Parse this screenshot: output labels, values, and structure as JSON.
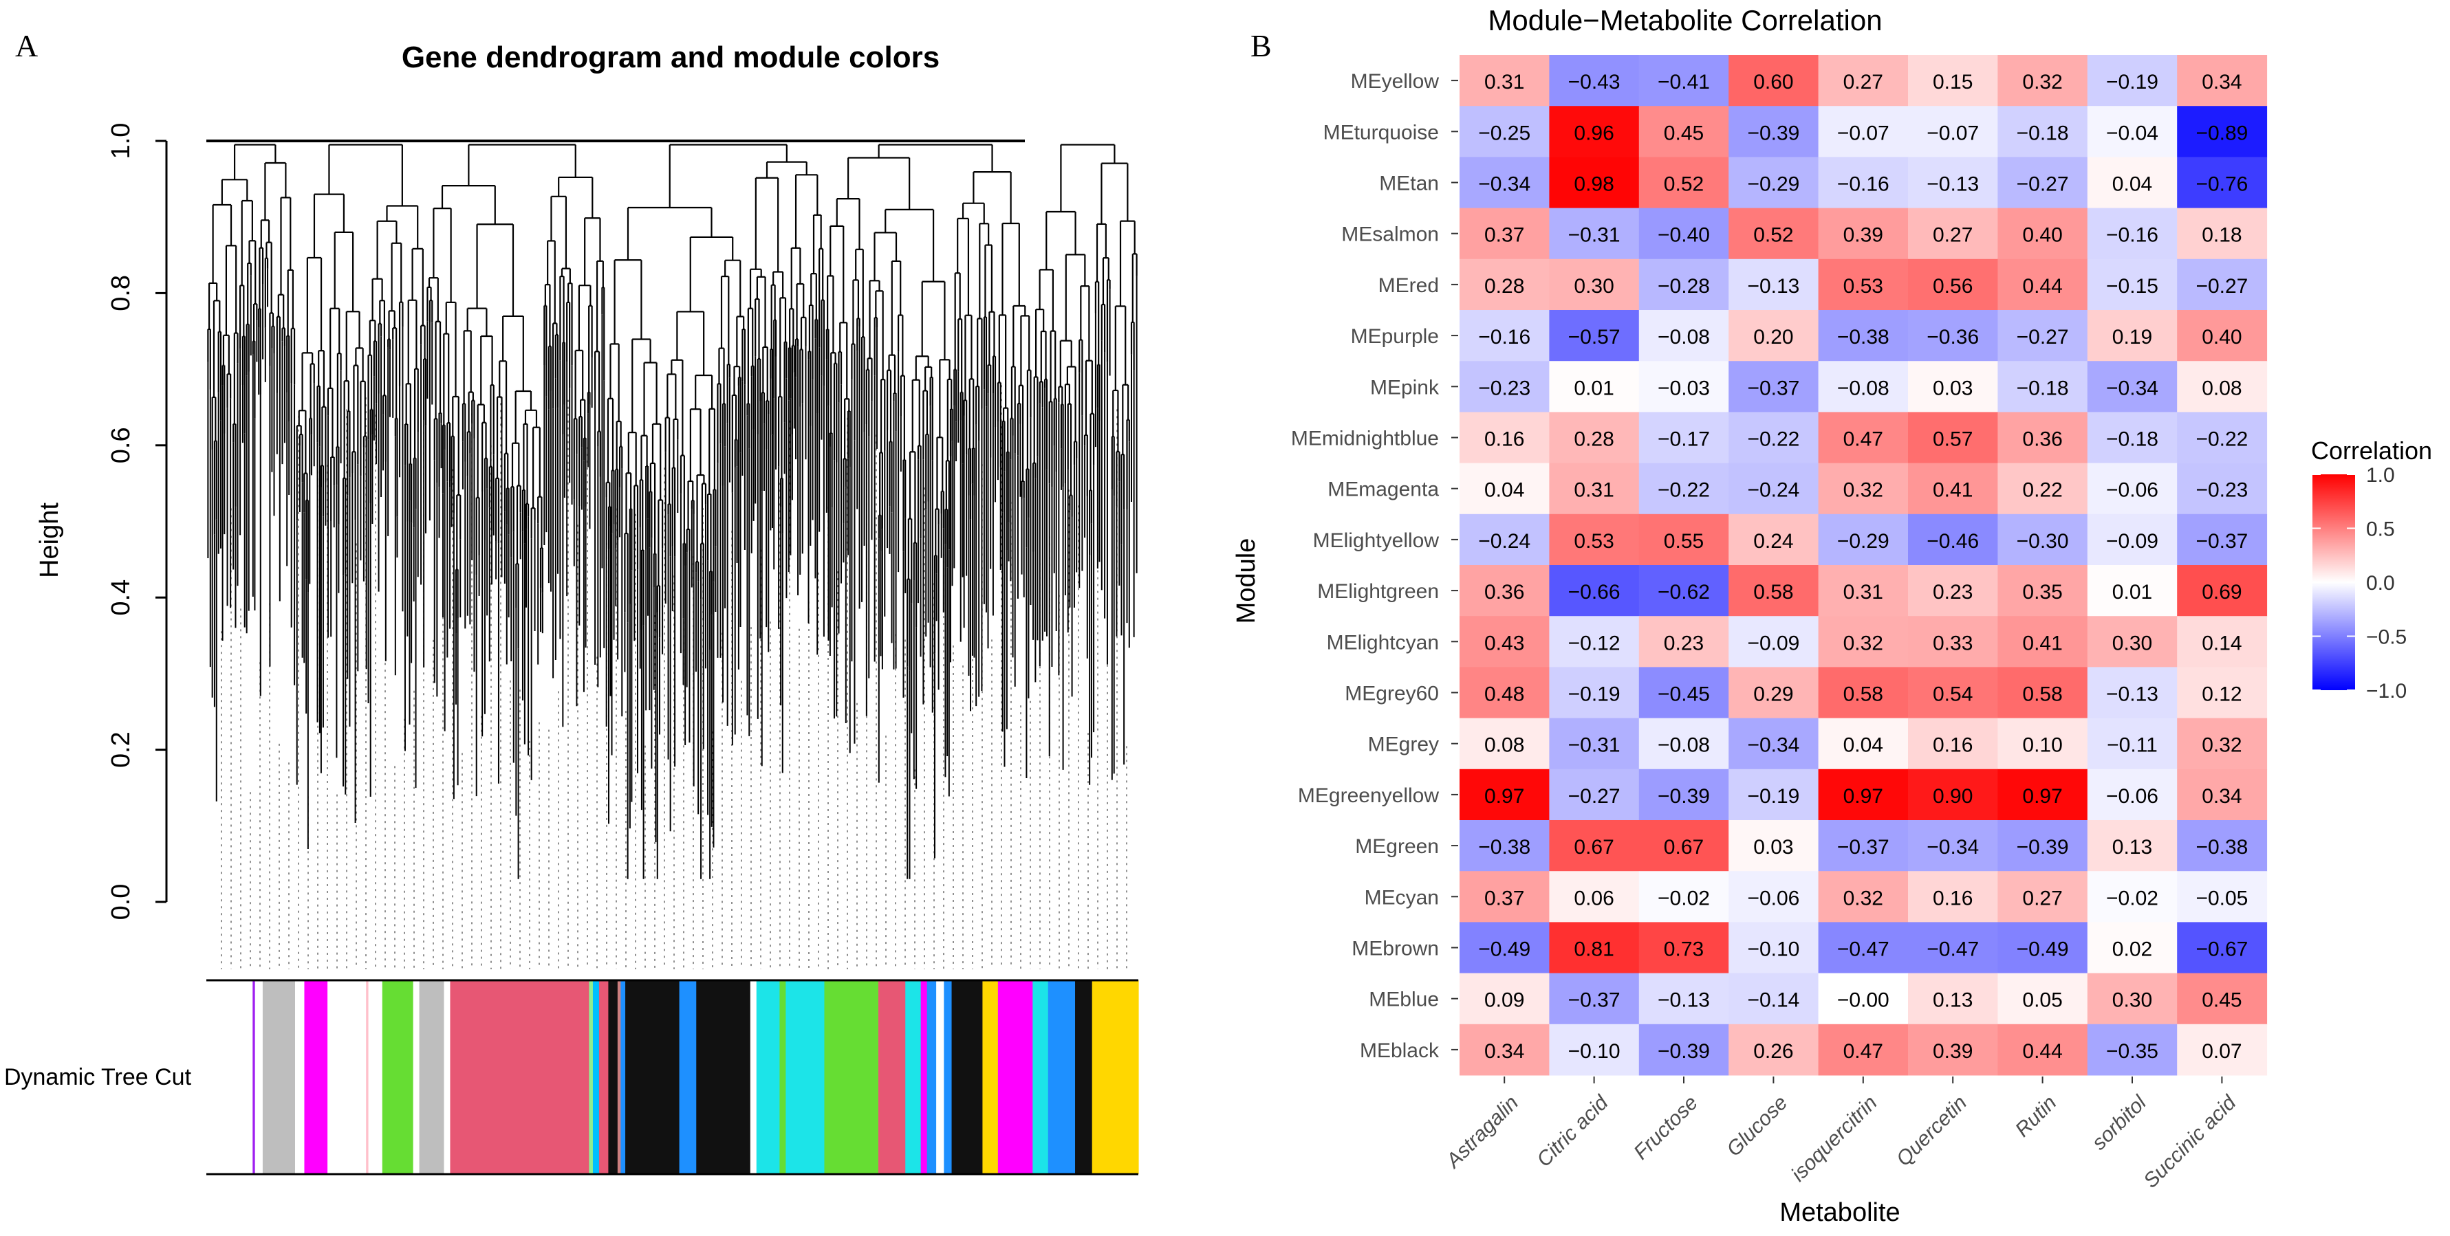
{
  "chart_data": [
    {
      "panel_label": "A",
      "type": "dendrogram",
      "title": "Gene dendrogram and module colors",
      "ylabel": "Height",
      "ylim": [
        0.0,
        1.0
      ],
      "yticks": [
        "0.0",
        "0.2",
        "0.4",
        "0.6",
        "0.8",
        "1.0"
      ],
      "color_bar_label": "Dynamic Tree Cut",
      "color_bar_segments": [
        {
          "color": "#ffffff",
          "width": 60
        },
        {
          "color": "#a020f0",
          "width": 3
        },
        {
          "color": "#ffffff",
          "width": 10
        },
        {
          "color": "#bebebe",
          "width": 42
        },
        {
          "color": "#ffffff",
          "width": 12
        },
        {
          "color": "#ff00ff",
          "width": 30
        },
        {
          "color": "#ffffff",
          "width": 50
        },
        {
          "color": "#ffc0cb",
          "width": 3
        },
        {
          "color": "#ffffff",
          "width": 18
        },
        {
          "color": "#66dd33",
          "width": 40
        },
        {
          "color": "#ffffff",
          "width": 8
        },
        {
          "color": "#bebebe",
          "width": 32
        },
        {
          "color": "#ffffff",
          "width": 8
        },
        {
          "color": "#e75774",
          "width": 180
        },
        {
          "color": "#90ee90",
          "width": 5
        },
        {
          "color": "#00bfff",
          "width": 8
        },
        {
          "color": "#e75774",
          "width": 12
        },
        {
          "color": "#111111",
          "width": 12
        },
        {
          "color": "#cd8080",
          "width": 4
        },
        {
          "color": "#1e90ff",
          "width": 6
        },
        {
          "color": "#111111",
          "width": 70
        },
        {
          "color": "#1e90ff",
          "width": 22
        },
        {
          "color": "#111111",
          "width": 70
        },
        {
          "color": "#ffffff",
          "width": 8
        },
        {
          "color": "#1ce4e8",
          "width": 30
        },
        {
          "color": "#66dd33",
          "width": 8
        },
        {
          "color": "#1ce4e8",
          "width": 50
        },
        {
          "color": "#66dd33",
          "width": 70
        },
        {
          "color": "#e75774",
          "width": 35
        },
        {
          "color": "#1ce4e8",
          "width": 20
        },
        {
          "color": "#ff00ff",
          "width": 8
        },
        {
          "color": "#1e90ff",
          "width": 12
        },
        {
          "color": "#ffffff",
          "width": 10
        },
        {
          "color": "#1e90ff",
          "width": 10
        },
        {
          "color": "#111111",
          "width": 40
        },
        {
          "color": "#ffd700",
          "width": 20
        },
        {
          "color": "#ff00ff",
          "width": 45
        },
        {
          "color": "#1ce4e8",
          "width": 20
        },
        {
          "color": "#1e90ff",
          "width": 35
        },
        {
          "color": "#111111",
          "width": 22
        },
        {
          "color": "#ffd700",
          "width": 60
        }
      ]
    },
    {
      "panel_label": "B",
      "type": "heatmap",
      "title": "Module−Metabolite Correlation",
      "xlabel": "Metabolite",
      "ylabel": "Module",
      "rows": [
        "MEyellow",
        "MEturquoise",
        "MEtan",
        "MEsalmon",
        "MEred",
        "MEpurple",
        "MEpink",
        "MEmidnightblue",
        "MEmagenta",
        "MElightyellow",
        "MElightgreen",
        "MElightcyan",
        "MEgrey60",
        "MEgrey",
        "MEgreenyellow",
        "MEgreen",
        "MEcyan",
        "MEbrown",
        "MEblue",
        "MEblack"
      ],
      "columns": [
        "Astragalin",
        "Citric acid",
        "Fructose",
        "Glucose",
        "isoquercitrin",
        "Quercetin",
        "Rutin",
        "sorbitol",
        "Succinic acid"
      ],
      "values": [
        [
          0.31,
          -0.43,
          -0.41,
          0.6,
          0.27,
          0.15,
          0.32,
          -0.19,
          0.34
        ],
        [
          -0.25,
          0.96,
          0.45,
          -0.39,
          -0.07,
          -0.07,
          -0.18,
          -0.04,
          -0.89
        ],
        [
          -0.34,
          0.98,
          0.52,
          -0.29,
          -0.16,
          -0.13,
          -0.27,
          0.04,
          -0.76
        ],
        [
          0.37,
          -0.31,
          -0.4,
          0.52,
          0.39,
          0.27,
          0.4,
          -0.16,
          0.18
        ],
        [
          0.28,
          0.3,
          -0.28,
          -0.13,
          0.53,
          0.56,
          0.44,
          -0.15,
          -0.27
        ],
        [
          -0.16,
          -0.57,
          -0.08,
          0.2,
          -0.38,
          -0.36,
          -0.27,
          0.19,
          0.4
        ],
        [
          -0.23,
          0.01,
          -0.03,
          -0.37,
          -0.08,
          0.03,
          -0.18,
          -0.34,
          0.08
        ],
        [
          0.16,
          0.28,
          -0.17,
          -0.22,
          0.47,
          0.57,
          0.36,
          -0.18,
          -0.22
        ],
        [
          0.04,
          0.31,
          -0.22,
          -0.24,
          0.32,
          0.41,
          0.22,
          -0.06,
          -0.23
        ],
        [
          -0.24,
          0.53,
          0.55,
          0.24,
          -0.29,
          -0.46,
          -0.3,
          -0.09,
          -0.37
        ],
        [
          0.36,
          -0.66,
          -0.62,
          0.58,
          0.31,
          0.23,
          0.35,
          0.01,
          0.69
        ],
        [
          0.43,
          -0.12,
          0.23,
          -0.09,
          0.32,
          0.33,
          0.41,
          0.3,
          0.14
        ],
        [
          0.48,
          -0.19,
          -0.45,
          0.29,
          0.58,
          0.54,
          0.58,
          -0.13,
          0.12
        ],
        [
          0.08,
          -0.31,
          -0.08,
          -0.34,
          0.04,
          0.16,
          0.1,
          -0.11,
          0.32
        ],
        [
          0.97,
          -0.27,
          -0.39,
          -0.19,
          0.97,
          0.9,
          0.97,
          -0.06,
          0.34
        ],
        [
          -0.38,
          0.67,
          0.67,
          0.03,
          -0.37,
          -0.34,
          -0.39,
          0.13,
          -0.38
        ],
        [
          0.37,
          0.06,
          -0.02,
          -0.06,
          0.32,
          0.16,
          0.27,
          -0.02,
          -0.05
        ],
        [
          -0.49,
          0.81,
          0.73,
          -0.1,
          -0.47,
          -0.47,
          -0.49,
          0.02,
          -0.67
        ],
        [
          0.09,
          -0.37,
          -0.13,
          -0.14,
          -0.0,
          0.13,
          0.05,
          0.3,
          0.45
        ],
        [
          0.34,
          -0.1,
          -0.39,
          0.26,
          0.47,
          0.39,
          0.44,
          -0.35,
          0.07
        ]
      ],
      "value_format": "2 decimals",
      "color_scale": {
        "low": "#0000ff",
        "mid": "#ffffff",
        "high": "#ff0000",
        "range": [
          -1.0,
          1.0
        ]
      },
      "legend": {
        "title": "Correlation",
        "ticks": [
          "1.0",
          "0.5",
          "0.0",
          "−0.5",
          "−1.0"
        ],
        "tick_values": [
          1.0,
          0.5,
          0.0,
          -0.5,
          -1.0
        ],
        "position": "right"
      }
    }
  ]
}
